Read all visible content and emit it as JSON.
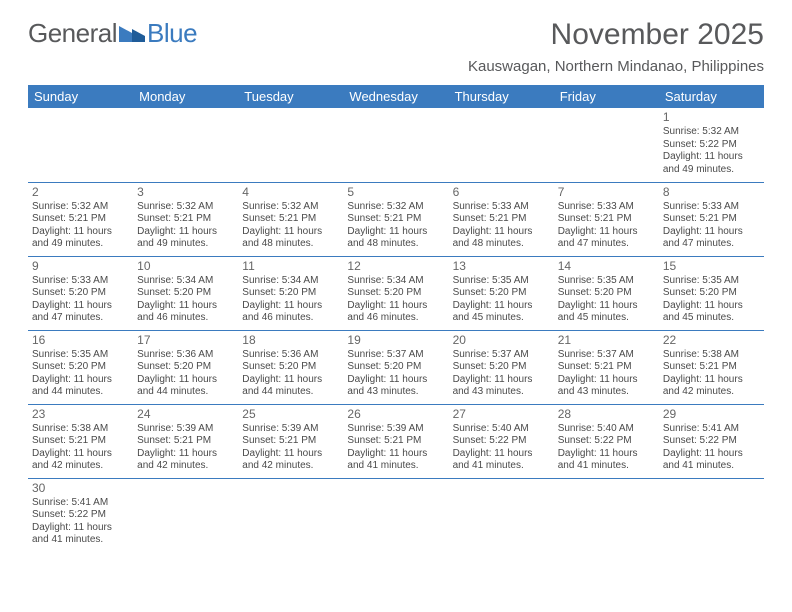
{
  "brand": {
    "general": "General",
    "blue": "Blue"
  },
  "title": "November 2025",
  "location": "Kauswagan, Northern Mindanao, Philippines",
  "colors": {
    "header_bg": "#3b7bbf",
    "header_text": "#ffffff",
    "text": "#4a4a4a",
    "title_text": "#58595b",
    "cell_border": "#3b7bbf",
    "background": "#ffffff"
  },
  "typography": {
    "title_fontsize": 30,
    "location_fontsize": 15,
    "weekday_fontsize": 13,
    "daynum_fontsize": 12,
    "info_fontsize": 10
  },
  "weekdays": [
    "Sunday",
    "Monday",
    "Tuesday",
    "Wednesday",
    "Thursday",
    "Friday",
    "Saturday"
  ],
  "layout": {
    "columns": 7,
    "rows": 6,
    "first_weekday_index": 6,
    "days_in_month": 30
  },
  "days": [
    {
      "n": 1,
      "sunrise": "5:32 AM",
      "sunset": "5:22 PM",
      "daylight": "11 hours and 49 minutes."
    },
    {
      "n": 2,
      "sunrise": "5:32 AM",
      "sunset": "5:21 PM",
      "daylight": "11 hours and 49 minutes."
    },
    {
      "n": 3,
      "sunrise": "5:32 AM",
      "sunset": "5:21 PM",
      "daylight": "11 hours and 49 minutes."
    },
    {
      "n": 4,
      "sunrise": "5:32 AM",
      "sunset": "5:21 PM",
      "daylight": "11 hours and 48 minutes."
    },
    {
      "n": 5,
      "sunrise": "5:32 AM",
      "sunset": "5:21 PM",
      "daylight": "11 hours and 48 minutes."
    },
    {
      "n": 6,
      "sunrise": "5:33 AM",
      "sunset": "5:21 PM",
      "daylight": "11 hours and 48 minutes."
    },
    {
      "n": 7,
      "sunrise": "5:33 AM",
      "sunset": "5:21 PM",
      "daylight": "11 hours and 47 minutes."
    },
    {
      "n": 8,
      "sunrise": "5:33 AM",
      "sunset": "5:21 PM",
      "daylight": "11 hours and 47 minutes."
    },
    {
      "n": 9,
      "sunrise": "5:33 AM",
      "sunset": "5:20 PM",
      "daylight": "11 hours and 47 minutes."
    },
    {
      "n": 10,
      "sunrise": "5:34 AM",
      "sunset": "5:20 PM",
      "daylight": "11 hours and 46 minutes."
    },
    {
      "n": 11,
      "sunrise": "5:34 AM",
      "sunset": "5:20 PM",
      "daylight": "11 hours and 46 minutes."
    },
    {
      "n": 12,
      "sunrise": "5:34 AM",
      "sunset": "5:20 PM",
      "daylight": "11 hours and 46 minutes."
    },
    {
      "n": 13,
      "sunrise": "5:35 AM",
      "sunset": "5:20 PM",
      "daylight": "11 hours and 45 minutes."
    },
    {
      "n": 14,
      "sunrise": "5:35 AM",
      "sunset": "5:20 PM",
      "daylight": "11 hours and 45 minutes."
    },
    {
      "n": 15,
      "sunrise": "5:35 AM",
      "sunset": "5:20 PM",
      "daylight": "11 hours and 45 minutes."
    },
    {
      "n": 16,
      "sunrise": "5:35 AM",
      "sunset": "5:20 PM",
      "daylight": "11 hours and 44 minutes."
    },
    {
      "n": 17,
      "sunrise": "5:36 AM",
      "sunset": "5:20 PM",
      "daylight": "11 hours and 44 minutes."
    },
    {
      "n": 18,
      "sunrise": "5:36 AM",
      "sunset": "5:20 PM",
      "daylight": "11 hours and 44 minutes."
    },
    {
      "n": 19,
      "sunrise": "5:37 AM",
      "sunset": "5:20 PM",
      "daylight": "11 hours and 43 minutes."
    },
    {
      "n": 20,
      "sunrise": "5:37 AM",
      "sunset": "5:20 PM",
      "daylight": "11 hours and 43 minutes."
    },
    {
      "n": 21,
      "sunrise": "5:37 AM",
      "sunset": "5:21 PM",
      "daylight": "11 hours and 43 minutes."
    },
    {
      "n": 22,
      "sunrise": "5:38 AM",
      "sunset": "5:21 PM",
      "daylight": "11 hours and 42 minutes."
    },
    {
      "n": 23,
      "sunrise": "5:38 AM",
      "sunset": "5:21 PM",
      "daylight": "11 hours and 42 minutes."
    },
    {
      "n": 24,
      "sunrise": "5:39 AM",
      "sunset": "5:21 PM",
      "daylight": "11 hours and 42 minutes."
    },
    {
      "n": 25,
      "sunrise": "5:39 AM",
      "sunset": "5:21 PM",
      "daylight": "11 hours and 42 minutes."
    },
    {
      "n": 26,
      "sunrise": "5:39 AM",
      "sunset": "5:21 PM",
      "daylight": "11 hours and 41 minutes."
    },
    {
      "n": 27,
      "sunrise": "5:40 AM",
      "sunset": "5:22 PM",
      "daylight": "11 hours and 41 minutes."
    },
    {
      "n": 28,
      "sunrise": "5:40 AM",
      "sunset": "5:22 PM",
      "daylight": "11 hours and 41 minutes."
    },
    {
      "n": 29,
      "sunrise": "5:41 AM",
      "sunset": "5:22 PM",
      "daylight": "11 hours and 41 minutes."
    },
    {
      "n": 30,
      "sunrise": "5:41 AM",
      "sunset": "5:22 PM",
      "daylight": "11 hours and 41 minutes."
    }
  ],
  "labels": {
    "sunrise": "Sunrise:",
    "sunset": "Sunset:",
    "daylight": "Daylight:"
  }
}
